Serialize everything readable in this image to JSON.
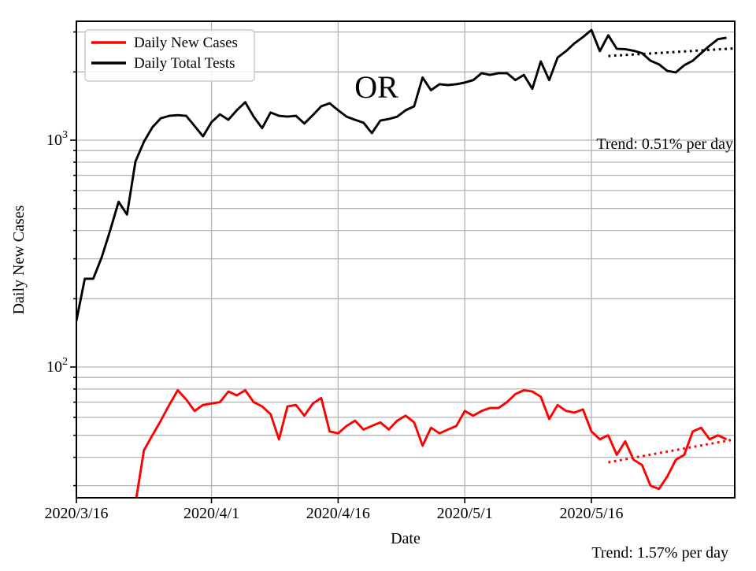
{
  "figure": {
    "background": "#ffffff",
    "state_label": "OR",
    "x_axis_label": "Date",
    "y_axis_label": "Daily New Cases",
    "tests_trend_annotation": "Trend: 0.51% per day",
    "cases_trend_annotation": "Trend: 1.57% per day"
  },
  "legend": {
    "position": "upper left",
    "entries": [
      {
        "label": "Daily New Cases",
        "color": "#ff0000"
      },
      {
        "label": "Daily Total Tests",
        "color": "#000000"
      }
    ]
  },
  "chart_data": {
    "type": "line",
    "title": "OR",
    "xlabel": "Date",
    "ylabel": "Daily New Cases",
    "y_scale": "log",
    "ylim": [
      26.5,
      3340
    ],
    "grid": true,
    "grid_color": "#b3b3b3",
    "legend_position": "upper left",
    "x_tick_labels": [
      "2020/3/16",
      "2020/4/1",
      "2020/4/16",
      "2020/5/1",
      "2020/5/16"
    ],
    "x_tick_days": [
      0,
      16,
      31,
      46,
      61
    ],
    "y_tick_labels": [
      "10^3",
      "10^2"
    ],
    "y_tick_values": [
      1000,
      100
    ],
    "y_gridline_values": [
      30,
      40,
      50,
      60,
      70,
      80,
      90,
      100,
      200,
      300,
      400,
      500,
      600,
      700,
      800,
      900,
      1000,
      2000,
      3000
    ],
    "series": [
      {
        "name": "Daily Total Tests",
        "color": "#000000",
        "start_date": "2020/3/16",
        "start_day": 0,
        "values": [
          160,
          245,
          245,
          305,
          400,
          535,
          470,
          805,
          985,
          1140,
          1250,
          1280,
          1290,
          1280,
          1155,
          1040,
          1200,
          1300,
          1230,
          1355,
          1470,
          1270,
          1130,
          1325,
          1280,
          1270,
          1280,
          1185,
          1290,
          1410,
          1455,
          1355,
          1270,
          1230,
          1195,
          1075,
          1220,
          1240,
          1270,
          1355,
          1410,
          1890,
          1660,
          1765,
          1750,
          1765,
          1795,
          1840,
          1975,
          1940,
          1975,
          1975,
          1840,
          1940,
          1685,
          2225,
          1840,
          2315,
          2470,
          2675,
          2850,
          3060,
          2470,
          2900,
          2530,
          2520,
          2480,
          2420,
          2240,
          2160,
          2020,
          1990,
          2140,
          2240,
          2420,
          2610,
          2790,
          2830
        ]
      },
      {
        "name": "Daily New Cases",
        "color": "#ff0000",
        "start_date": "2020/3/23",
        "start_day": 7,
        "values": [
          25,
          43,
          50,
          58,
          68,
          79,
          72,
          64,
          68,
          69,
          70,
          78,
          75,
          79,
          70,
          67,
          62,
          48,
          67,
          68,
          61,
          69,
          73,
          52,
          51,
          55,
          58,
          53,
          55,
          57,
          53,
          58,
          61,
          57,
          45,
          54,
          51,
          53,
          55,
          64,
          61,
          64,
          66,
          66,
          70,
          76,
          79,
          78,
          74,
          59,
          68,
          64,
          63,
          65,
          52,
          48,
          50,
          41,
          47,
          39,
          37,
          30,
          29,
          33,
          39,
          41,
          52,
          54,
          48,
          50,
          48
        ]
      }
    ],
    "trend_lines": [
      {
        "series": "Daily Total Tests",
        "label": "Trend: 0.51% per day",
        "percent_per_day": 0.51,
        "color": "#000000",
        "start_day": 63,
        "end_day": 78,
        "start_value": 2350,
        "end_value": 2540
      },
      {
        "series": "Daily New Cases",
        "label": "Trend: 1.57% per day",
        "percent_per_day": 1.57,
        "color": "#ff0000",
        "start_day": 63,
        "end_day": 78,
        "start_value": 38,
        "end_value": 48
      }
    ]
  }
}
